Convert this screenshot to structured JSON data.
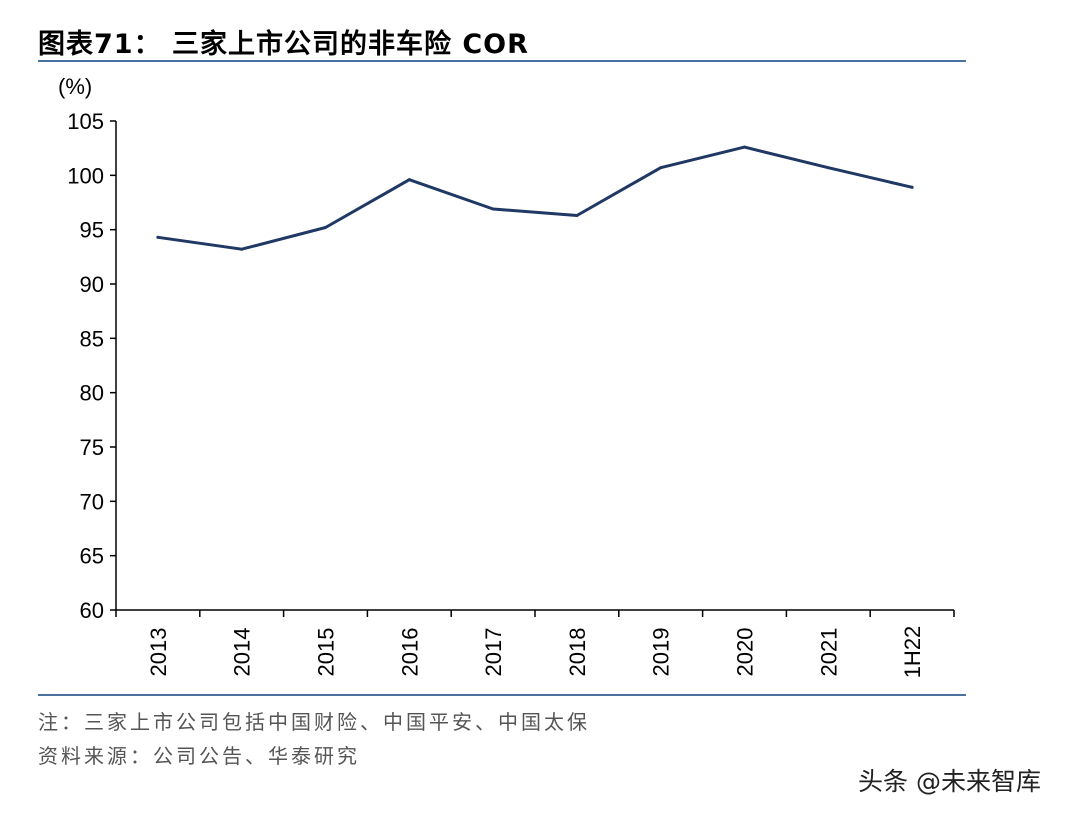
{
  "title": "图表71： 三家上市公司的非车险 COR",
  "chart_data": {
    "type": "line",
    "ylabel": "(%)",
    "ylim": [
      60,
      105
    ],
    "yticks": [
      60,
      65,
      70,
      75,
      80,
      85,
      90,
      95,
      100,
      105
    ],
    "categories": [
      "2013",
      "2014",
      "2015",
      "2016",
      "2017",
      "2018",
      "2019",
      "2020",
      "2021",
      "1H22"
    ],
    "series": [
      {
        "values": [
          94.3,
          93.2,
          95.2,
          99.6,
          96.9,
          96.3,
          100.7,
          102.6,
          100.7,
          98.9
        ]
      }
    ],
    "line_color": "#1f3864",
    "grid": false
  },
  "notes": {
    "note": "注：三家上市公司包括中国财险、中国平安、中国太保",
    "source": "资料来源：公司公告、华泰研究"
  },
  "watermark": "头条 @未来智库"
}
